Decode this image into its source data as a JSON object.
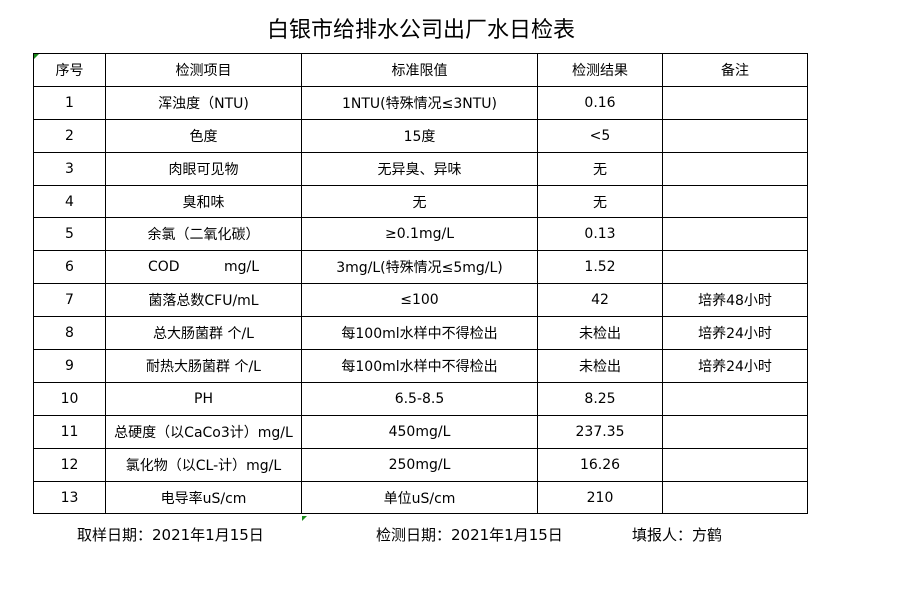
{
  "title": "白银市给排水公司出厂水日检表",
  "table": {
    "headers": [
      "序号",
      "检测项目",
      "标准限值",
      "检测结果",
      "备注"
    ],
    "rows": [
      [
        "1",
        "浑浊度（NTU)",
        "1NTU(特殊情况≤3NTU)",
        "0.16",
        ""
      ],
      [
        "2",
        "色度",
        "15度",
        "<5",
        ""
      ],
      [
        "3",
        "肉眼可见物",
        "无异臭、异味",
        "无",
        ""
      ],
      [
        "4",
        "臭和味",
        "无",
        "无",
        ""
      ],
      [
        "5",
        "余氯（二氧化碳）",
        "≥0.1mg/L",
        "0.13",
        ""
      ],
      [
        "6",
        "COD          mg/L",
        "3mg/L(特殊情况≤5mg/L)",
        "1.52",
        ""
      ],
      [
        "7",
        "菌落总数CFU/mL",
        "≤100",
        "42",
        "培养48小时"
      ],
      [
        "8",
        "总大肠菌群 个/L",
        "每100ml水样中不得检出",
        "未检出",
        "培养24小时"
      ],
      [
        "9",
        "耐热大肠菌群 个/L",
        "每100ml水样中不得检出",
        "未检出",
        "培养24小时"
      ],
      [
        "10",
        "PH",
        "6.5-8.5",
        "8.25",
        ""
      ],
      [
        "11",
        "总硬度（以CaCo3计）mg/L",
        "450mg/L",
        "237.35",
        ""
      ],
      [
        "12",
        "氯化物（以CL-计）mg/L",
        "250mg/L",
        "16.26",
        ""
      ],
      [
        "13",
        "电导率uS/cm",
        "单位uS/cm",
        "210",
        ""
      ]
    ]
  },
  "footer": {
    "sample_date": "取样日期：2021年1月15日",
    "test_date": "检测日期：2021年1月15日",
    "reporter": "填报人：方鹤"
  }
}
